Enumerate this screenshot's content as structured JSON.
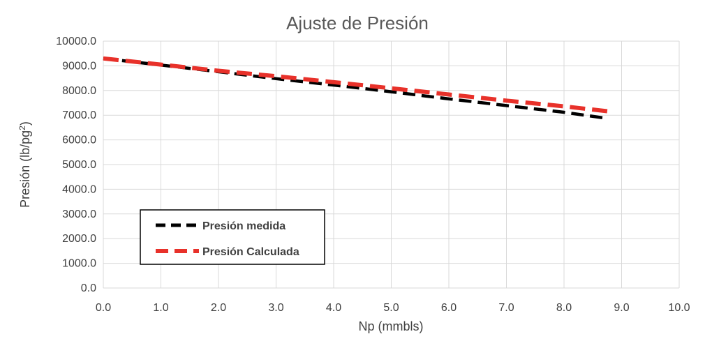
{
  "chart_data": {
    "type": "line",
    "title": "Ajuste de Presión",
    "xlabel": "Np (mmbls)",
    "ylabel_main": "Presión (lb/pg",
    "ylabel_sup": "2",
    "ylabel_end": ")",
    "xlim": [
      0,
      10
    ],
    "ylim": [
      0,
      10000
    ],
    "x_ticks": [
      "0.0",
      "1.0",
      "2.0",
      "3.0",
      "4.0",
      "5.0",
      "6.0",
      "7.0",
      "8.0",
      "9.0",
      "10.0"
    ],
    "y_ticks": [
      "0.0",
      "1000.0",
      "2000.0",
      "3000.0",
      "4000.0",
      "5000.0",
      "6000.0",
      "7000.0",
      "8000.0",
      "9000.0",
      "10000.0"
    ],
    "grid": true,
    "legend_position": "bottom-left",
    "series": [
      {
        "name": "Presión medida",
        "color": "#000000",
        "x": [
          0.0,
          1.0,
          2.0,
          3.0,
          4.0,
          5.0,
          6.0,
          7.0,
          8.0,
          8.75
        ],
        "y": [
          9300,
          9030,
          8760,
          8480,
          8220,
          7950,
          7660,
          7390,
          7120,
          6870
        ]
      },
      {
        "name": "Presión Calculada",
        "color": "#e8312a",
        "x": [
          0.0,
          1.0,
          2.0,
          3.0,
          4.0,
          5.0,
          6.0,
          7.0,
          8.0,
          8.75
        ],
        "y": [
          9300,
          9050,
          8800,
          8580,
          8340,
          8090,
          7840,
          7590,
          7360,
          7160
        ]
      }
    ]
  }
}
